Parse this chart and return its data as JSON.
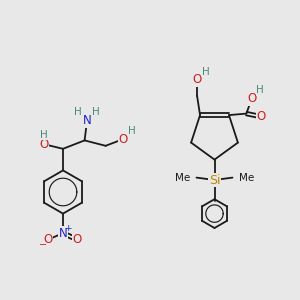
{
  "bg_color": "#e8e8e8",
  "bond_color": "#1a1a1a",
  "bond_width": 1.3,
  "atom_colors": {
    "C": "#1a1a1a",
    "H": "#4a8a7a",
    "N": "#2020cc",
    "O": "#cc2020",
    "Si": "#bb8800"
  },
  "fig_width": 3.0,
  "fig_height": 3.0,
  "dpi": 100
}
